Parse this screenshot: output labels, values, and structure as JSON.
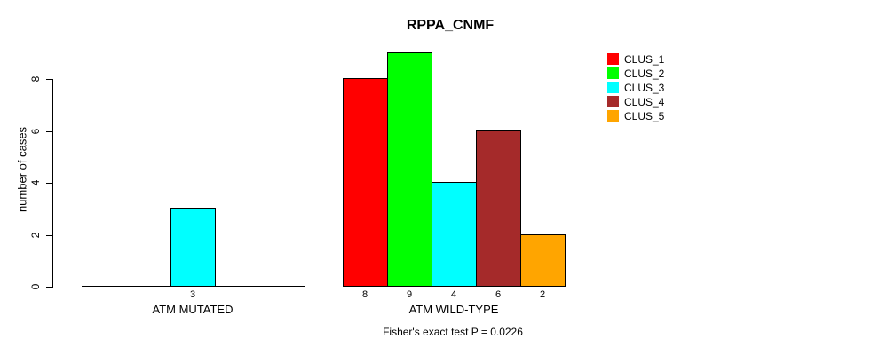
{
  "chart_data": {
    "type": "bar",
    "title": "RPPA_CNMF",
    "xlabel": "",
    "ylabel": "number of cases",
    "ylim": [
      0,
      9
    ],
    "yticks": [
      0,
      2,
      4,
      6,
      8
    ],
    "grid": false,
    "legend_position": "top-right",
    "series": [
      {
        "name": "CLUS_1",
        "color": "#FF0000"
      },
      {
        "name": "CLUS_2",
        "color": "#00FF00"
      },
      {
        "name": "CLUS_3",
        "color": "#00FFFF"
      },
      {
        "name": "CLUS_4",
        "color": "#A52A2A"
      },
      {
        "name": "CLUS_5",
        "color": "#FFA500"
      }
    ],
    "groups": [
      {
        "label": "ATM MUTATED",
        "values": [
          0,
          0,
          3,
          0,
          0
        ]
      },
      {
        "label": "ATM WILD-TYPE",
        "values": [
          8,
          9,
          4,
          6,
          2
        ]
      }
    ],
    "bar_value_labels_visible": true,
    "annotation": "Fisher's exact test P = 0.0226",
    "colors": {
      "background": "#ffffff",
      "axis": "#000000",
      "text": "#000000",
      "bar_border": "#000000"
    }
  }
}
